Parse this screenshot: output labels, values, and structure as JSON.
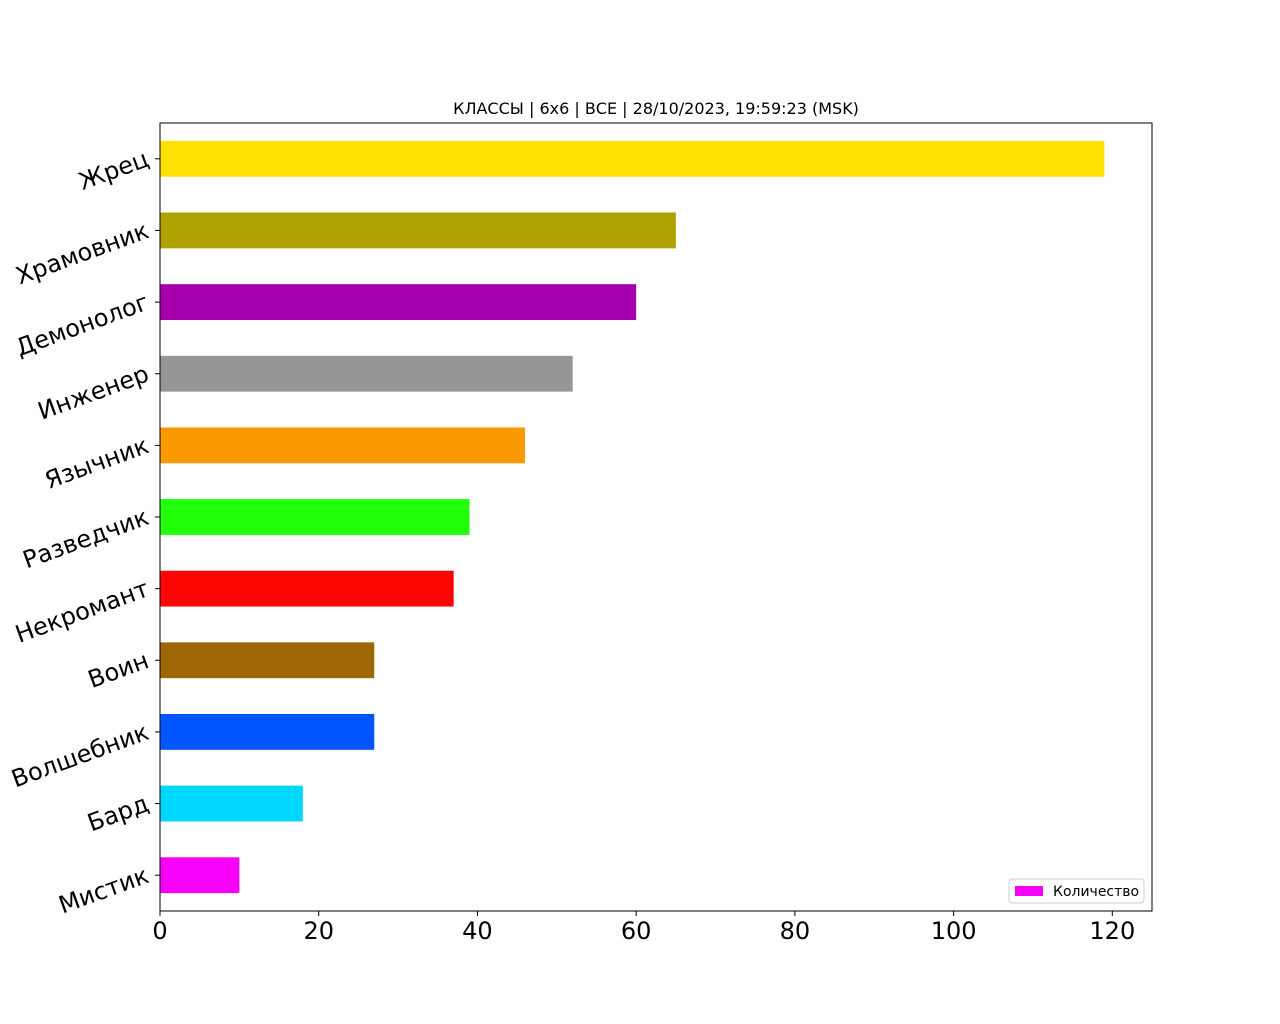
{
  "chart_data": {
    "type": "bar",
    "orientation": "horizontal",
    "title": "КЛАССЫ | 6x6 | ВСЕ | 28/10/2023, 19:59:23 (MSK)",
    "xlabel": "",
    "ylabel": "",
    "categories": [
      "Мистик",
      "Бард",
      "Волшебник",
      "Воин",
      "Некромант",
      "Разведчик",
      "Язычник",
      "Инженер",
      "Демонолог",
      "Храмовник",
      "Жрец"
    ],
    "series": [
      {
        "name": "Количество",
        "values": [
          10,
          18,
          27,
          27,
          37,
          39,
          46,
          52,
          60,
          65,
          119
        ]
      }
    ],
    "bar_colors": [
      "#f700f7",
      "#00d7ff",
      "#0055ff",
      "#9d6703",
      "#fb0505",
      "#21ff0b",
      "#fa9900",
      "#969696",
      "#a600ac",
      "#afa100",
      "#ffe100"
    ],
    "xlim": [
      0,
      125
    ],
    "xticks": [
      0,
      20,
      40,
      60,
      80,
      100,
      120
    ],
    "grid": false,
    "legend_position": "lower-right",
    "legend_color": "#f700f7"
  }
}
